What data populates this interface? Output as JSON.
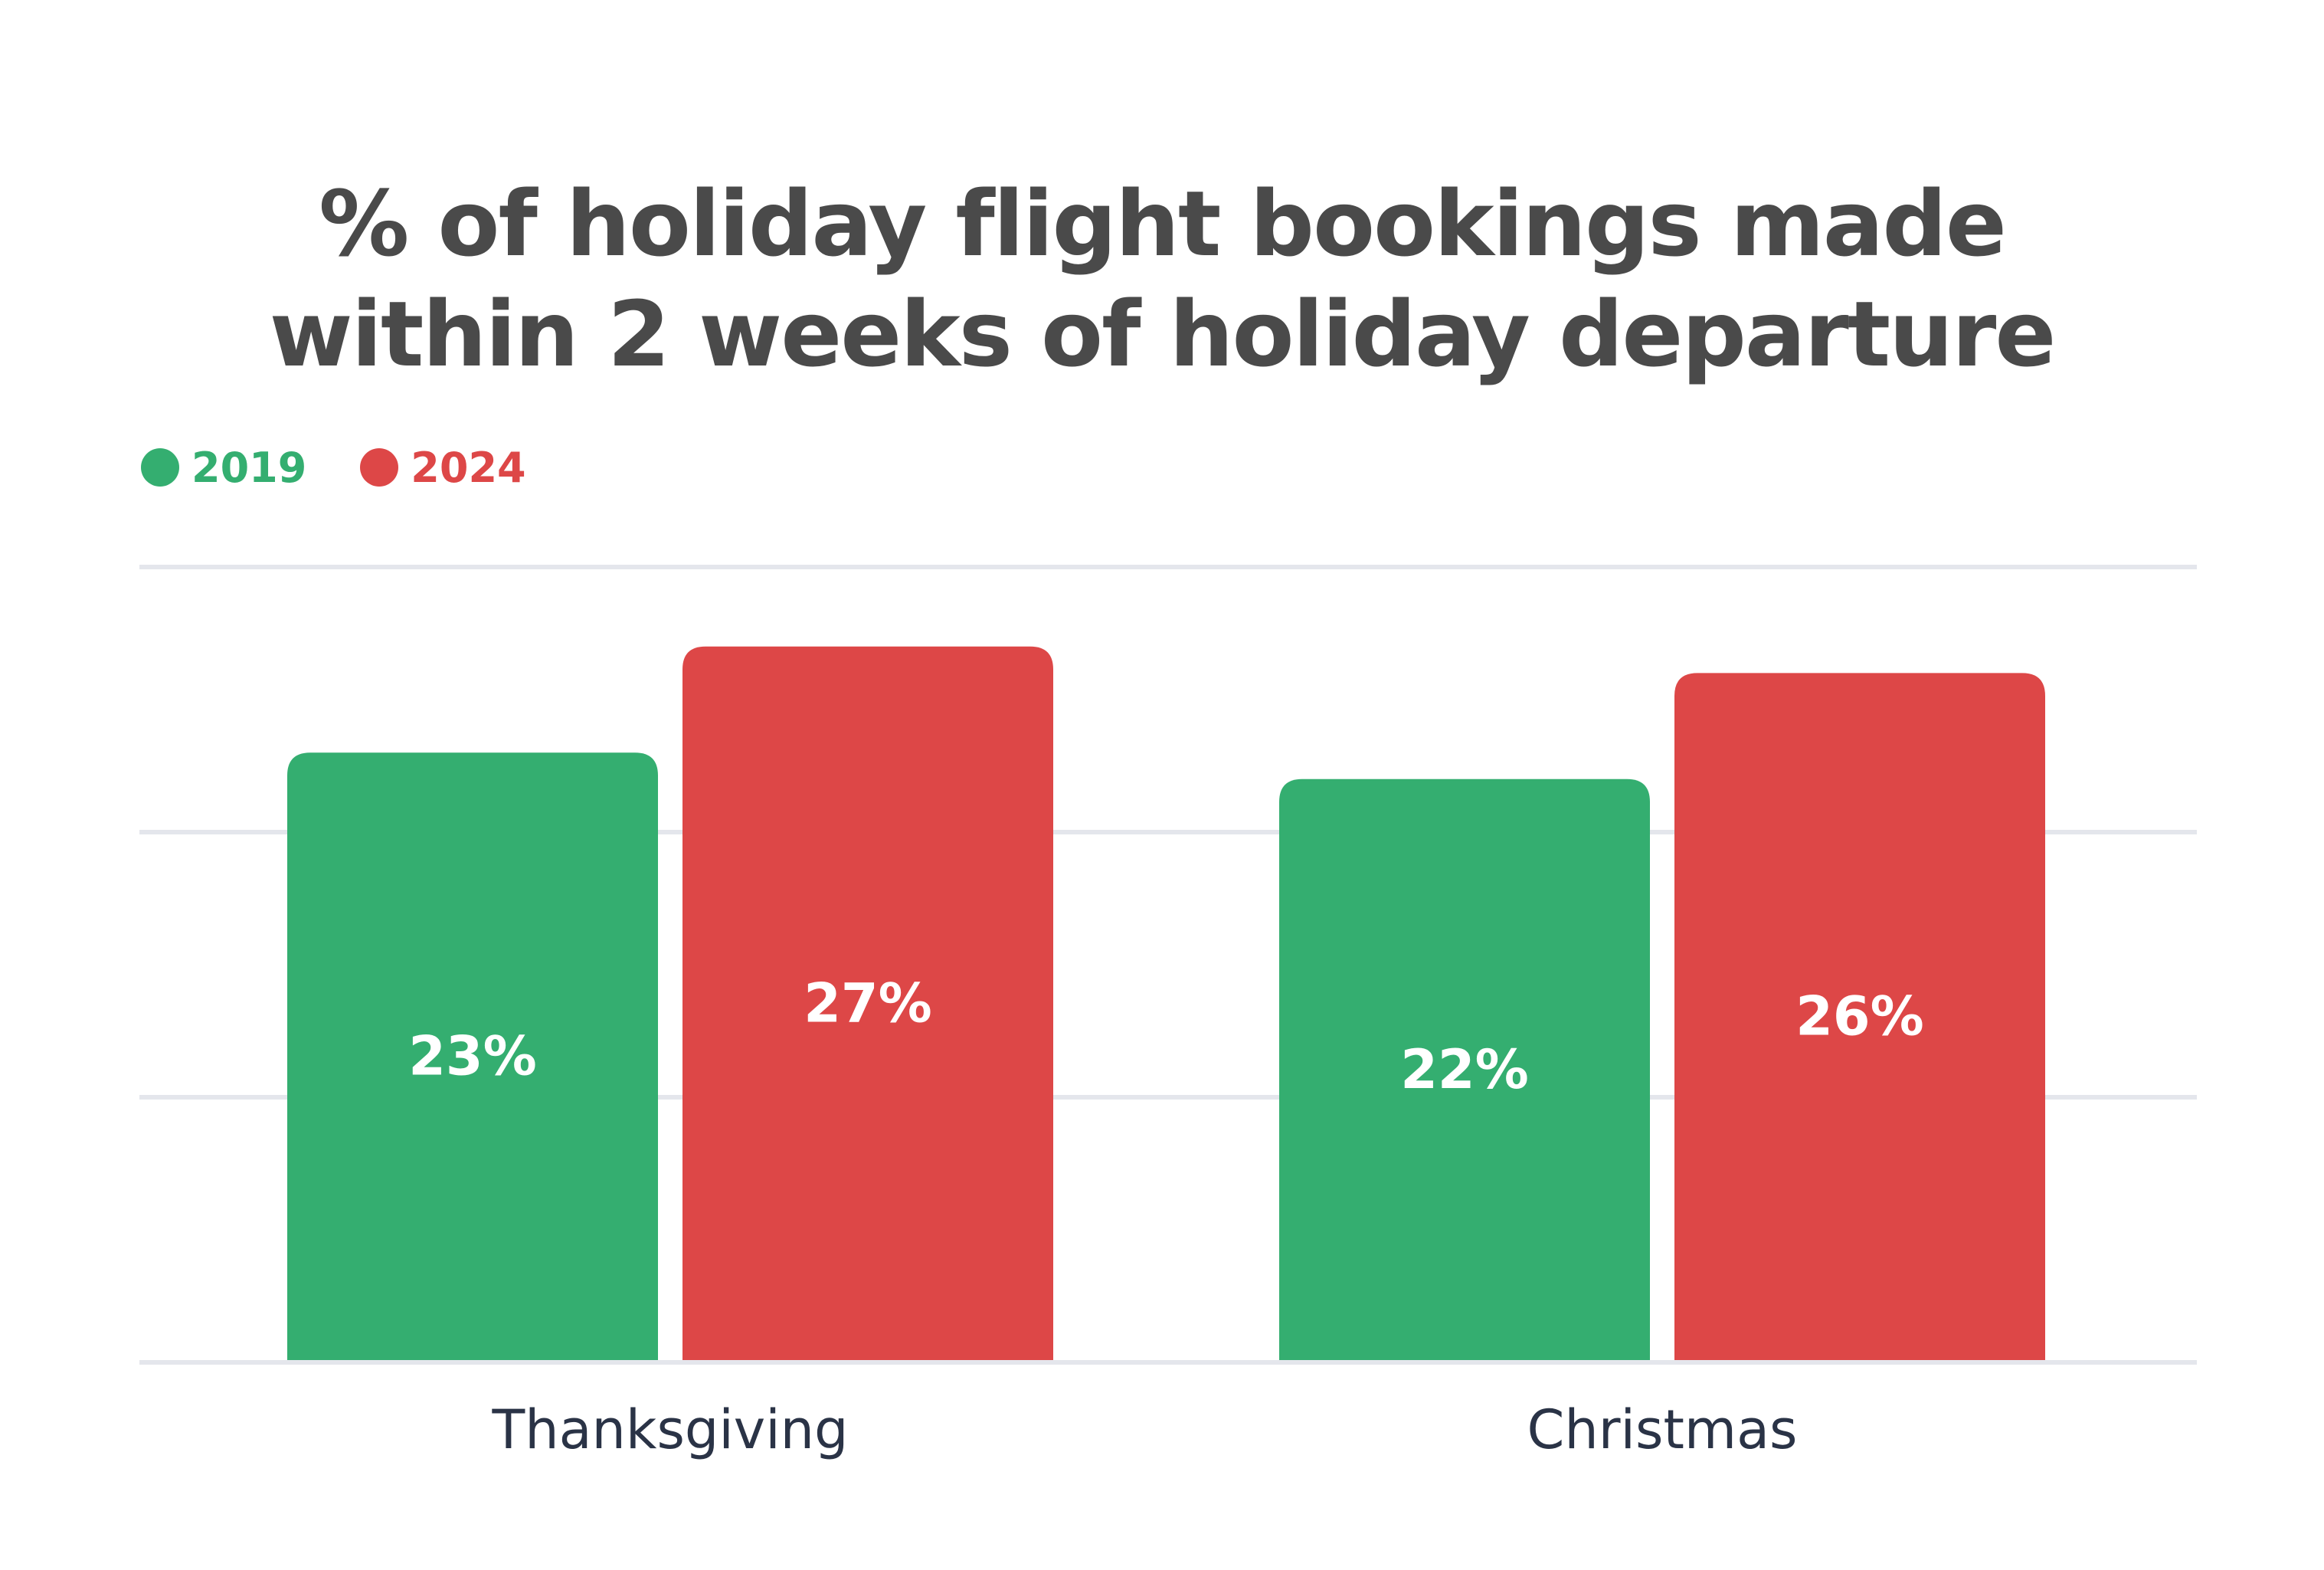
{
  "chart_data": {
    "type": "bar",
    "title_line1": "% of holiday flight bookings made",
    "title_line2": "within 2 weeks of holiday departure",
    "categories": [
      "Thanksgiving",
      "Christmas"
    ],
    "series": [
      {
        "name": "2019",
        "color": "#34ae70",
        "values": [
          23,
          22
        ],
        "labels": [
          "23%",
          "22%"
        ]
      },
      {
        "name": "2024",
        "color": "#dd4747",
        "values": [
          27,
          26
        ],
        "labels": [
          "27%",
          "26%"
        ]
      }
    ],
    "ylim": [
      0,
      30
    ],
    "gridlines": [
      0,
      10,
      20,
      30
    ],
    "grid": true,
    "legend_position": "top-left",
    "xlabel": "",
    "ylabel": ""
  },
  "colors": {
    "grid": "#e4e6ec",
    "title": "#4a4a4a",
    "axis_text": "#2a3346"
  }
}
